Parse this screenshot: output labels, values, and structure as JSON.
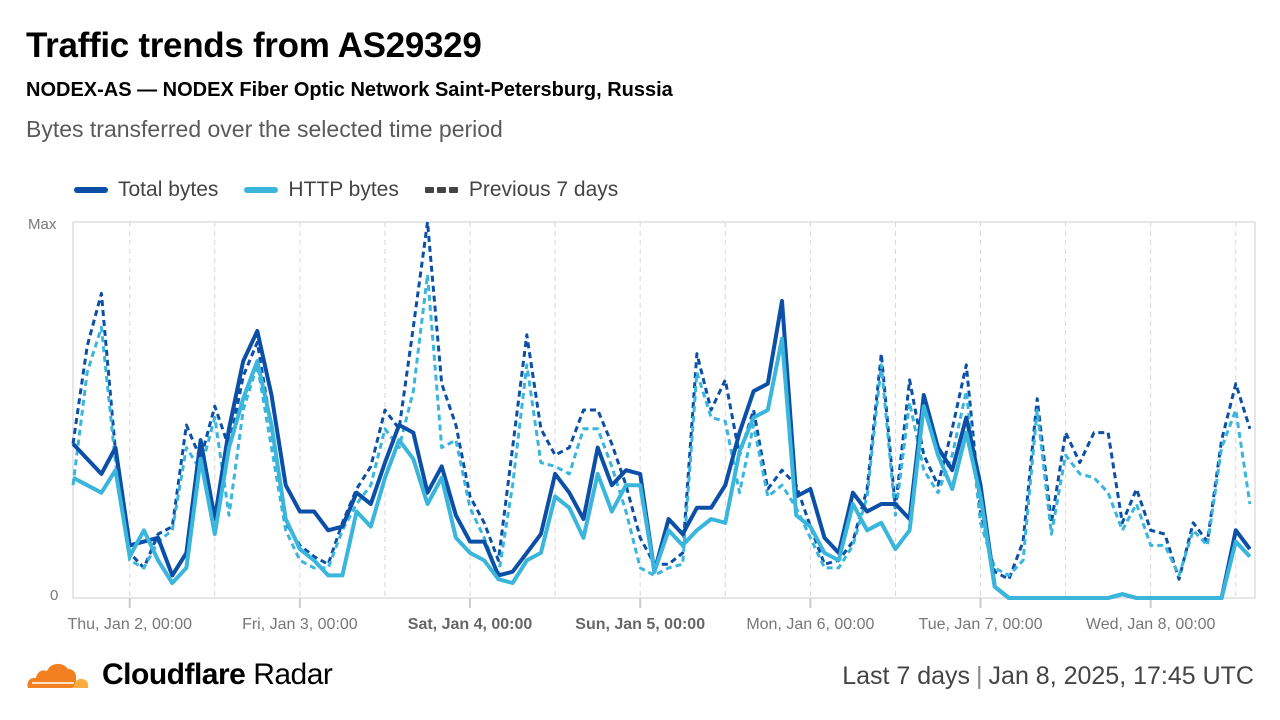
{
  "header": {
    "title": "Traffic trends from AS29329",
    "subtitle": "NODEX-AS — NODEX Fiber Optic Network Saint-Petersburg, Russia",
    "description": "Bytes transferred over the selected time period"
  },
  "legend": [
    {
      "label": "Total bytes",
      "color": "#0b4fa6",
      "style": "solid"
    },
    {
      "label": "HTTP bytes",
      "color": "#3ab5dc",
      "style": "solid"
    },
    {
      "label": "Previous 7 days",
      "color": "#444444",
      "style": "dashed"
    }
  ],
  "chart_data": {
    "type": "line",
    "x_range": [
      "2025-01-01T16:00",
      "2025-01-08T14:00"
    ],
    "x_interval_hours": 2,
    "y_ticks": [
      "Max",
      "0"
    ],
    "y_unit": "percent of max",
    "ylim": [
      0,
      100
    ],
    "grid": "vertical dashed every 12 hours",
    "legend_position": "top-left",
    "x_ticks": [
      {
        "label": "Thu, Jan 2, 00:00",
        "date": "2025-01-02T00:00",
        "bold": false
      },
      {
        "label": "Fri, Jan 3, 00:00",
        "date": "2025-01-03T00:00",
        "bold": false
      },
      {
        "label": "Sat, Jan 4, 00:00",
        "date": "2025-01-04T00:00",
        "bold": true
      },
      {
        "label": "Sun, Jan 5, 00:00",
        "date": "2025-01-05T00:00",
        "bold": true
      },
      {
        "label": "Mon, Jan 6, 00:00",
        "date": "2025-01-06T00:00",
        "bold": false
      },
      {
        "label": "Tue, Jan 7, 00:00",
        "date": "2025-01-07T00:00",
        "bold": false
      },
      {
        "label": "Wed, Jan 8, 00:00",
        "date": "2025-01-08T00:00",
        "bold": false
      }
    ],
    "series": [
      {
        "name": "Previous 7 days (Total bytes)",
        "color": "#0b4fa6",
        "dashed": true,
        "values": [
          41,
          67,
          81,
          39,
          12,
          8,
          17,
          19,
          46,
          37,
          51,
          40,
          59,
          68,
          45,
          20,
          14,
          11,
          9,
          20,
          29,
          35,
          50,
          45,
          72,
          100,
          57,
          46,
          27,
          20,
          10,
          40,
          70,
          45,
          38,
          40,
          50,
          50,
          41,
          30,
          16,
          9,
          9,
          12,
          65,
          50,
          58,
          38,
          50,
          29,
          34,
          30,
          19,
          9,
          10,
          15,
          29,
          65,
          24,
          58,
          38,
          30,
          45,
          62,
          23,
          7,
          5,
          15,
          53,
          20,
          44,
          36,
          44,
          44,
          20,
          29,
          18,
          17,
          5,
          20,
          15,
          42,
          57,
          45
        ]
      },
      {
        "name": "Previous 7 days (HTTP bytes)",
        "color": "#3ab5dc",
        "dashed": true,
        "values": [
          30,
          60,
          72,
          36,
          10,
          8,
          15,
          18,
          40,
          34,
          48,
          22,
          50,
          62,
          40,
          18,
          10,
          8,
          8,
          18,
          25,
          30,
          45,
          40,
          55,
          86,
          40,
          42,
          24,
          16,
          6,
          30,
          62,
          36,
          35,
          33,
          45,
          45,
          35,
          23,
          8,
          6,
          8,
          9,
          60,
          48,
          47,
          28,
          46,
          27,
          30,
          24,
          16,
          8,
          8,
          14,
          27,
          62,
          22,
          52,
          34,
          28,
          38,
          55,
          20,
          8,
          6,
          10,
          50,
          17,
          38,
          33,
          32,
          28,
          18,
          25,
          14,
          14,
          6,
          18,
          14,
          40,
          50,
          25
        ]
      },
      {
        "name": "Total bytes",
        "color": "#0b4fa6",
        "dashed": false,
        "values": [
          41,
          37,
          33,
          40,
          14,
          15,
          16,
          6,
          12,
          42,
          21,
          45,
          63,
          71,
          54,
          30,
          23,
          23,
          18,
          19,
          28,
          25,
          36,
          46,
          44,
          28,
          35,
          22,
          15,
          15,
          6,
          7,
          12,
          17,
          33,
          28,
          21,
          40,
          30,
          34,
          33,
          7,
          21,
          17,
          24,
          24,
          30,
          44,
          55,
          57,
          79,
          27,
          29,
          16,
          12,
          28,
          23,
          25,
          25,
          21,
          54,
          40,
          34,
          48,
          30,
          3,
          0,
          0,
          0,
          0,
          0,
          0,
          0,
          0,
          1,
          0,
          0,
          0,
          0,
          0,
          0,
          0,
          18,
          13
        ]
      },
      {
        "name": "HTTP bytes",
        "color": "#3ab5dc",
        "dashed": false,
        "values": [
          32,
          30,
          28,
          34,
          11,
          18,
          10,
          4,
          8,
          37,
          17,
          40,
          53,
          63,
          46,
          21,
          13,
          10,
          6,
          6,
          23,
          19,
          32,
          42,
          37,
          25,
          32,
          16,
          12,
          10,
          5,
          4,
          10,
          12,
          27,
          24,
          16,
          33,
          23,
          30,
          30,
          7,
          18,
          14,
          18,
          21,
          20,
          39,
          48,
          50,
          69,
          22,
          19,
          12,
          10,
          25,
          18,
          20,
          13,
          18,
          51,
          38,
          29,
          44,
          27,
          3,
          0,
          0,
          0,
          0,
          0,
          0,
          0,
          0,
          1,
          0,
          0,
          0,
          0,
          0,
          0,
          0,
          15,
          11
        ]
      }
    ]
  },
  "footer": {
    "brand_bold": "Cloudflare",
    "brand_light": "Radar",
    "period": "Last 7 days",
    "separator": "|",
    "timestamp": "Jan 8, 2025, 17:45 UTC",
    "logo_colors": [
      "#f38020",
      "#faad3f"
    ]
  }
}
